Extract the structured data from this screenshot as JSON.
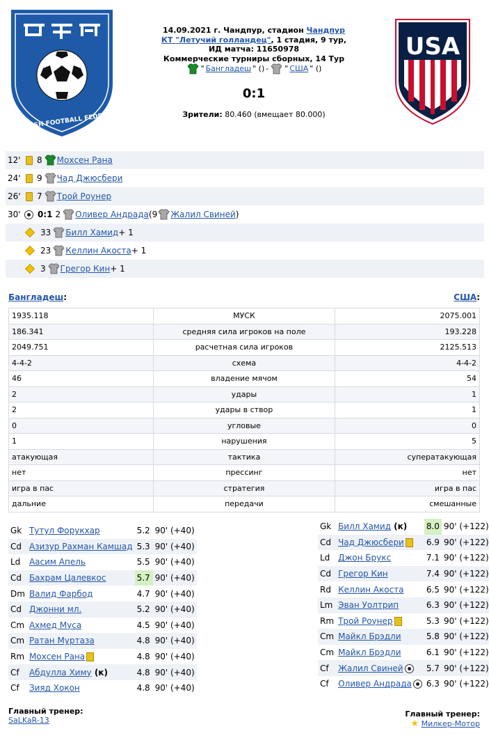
{
  "match": {
    "date_city": "14.09.2021 г. Чандпур, стадион ",
    "stadium_link": "Чандпур",
    "tournament_link": "КТ \"Летучий голландец\"",
    "stage": ", 1 стадия, 9 тур,",
    "match_id": "ИД матча: 11650978",
    "competition": "Коммерческие турниры сборных, 14 Тур",
    "home_team": "Бангладеш",
    "away_team": "США",
    "home_extra": "\" ()",
    "away_extra": "\" ()",
    "separator": " - ",
    "quote_open": "\"",
    "score": "0:1",
    "attendance_label": "Зрители:",
    "attendance_value": " 80.460 (вмещает 80.000)"
  },
  "logos": {
    "home_text": "BANGLADESH FOOTBALL FEDERATION",
    "away_text": "USA"
  },
  "colors": {
    "link": "#2255aa",
    "home_shirt": "#1a8a2a",
    "away_shirt": "#9a9a9a",
    "yellow_card": "#e8c21c",
    "rating_highlight": "#d5f0c2"
  },
  "events": [
    {
      "minute": "12'",
      "icon": "yellow-card-icon",
      "num": "8",
      "shirt": "home",
      "player": "Мохсен Рана"
    },
    {
      "minute": "24'",
      "icon": "yellow-card-icon",
      "num": "9",
      "shirt": "away",
      "player": "Чад Джюсбери"
    },
    {
      "minute": "26'",
      "icon": "yellow-card-icon",
      "num": "7",
      "shirt": "away",
      "player": "Трой Роунер"
    },
    {
      "minute": "30'",
      "icon": "ball-icon",
      "score": "0:1",
      "num": "2",
      "shirt": "away",
      "player": "Оливер Андрада",
      "assist_open": " (9 ",
      "assist": "Жалил Свиней",
      "assist_close": ")"
    }
  ],
  "subs": [
    {
      "icon": "substitution-icon",
      "num": "33",
      "player": "Билл Хамид",
      "suffix": " + 1"
    },
    {
      "icon": "substitution-icon",
      "num": "23",
      "player": "Келлин Акоста",
      "suffix": " + 1"
    },
    {
      "icon": "substitution-icon",
      "num": "3",
      "player": "Грегор Кин",
      "suffix": " + 1"
    }
  ],
  "teams": {
    "home": "Бангладеш",
    "away": "США",
    "colon": ":"
  },
  "stats": [
    {
      "home": "1935.118",
      "label": "МУСК",
      "away": "2075.001"
    },
    {
      "home": "186.341",
      "label": "средняя сила игроков на поле",
      "away": "193.228"
    },
    {
      "home": "2049.751",
      "label": "расчетная сила игроков",
      "away": "2125.513"
    },
    {
      "home": "4-4-2",
      "label": "схема",
      "away": "4-4-2"
    },
    {
      "home": "46",
      "label": "владение мячом",
      "away": "54"
    },
    {
      "home": "2",
      "label": "удары",
      "away": "1"
    },
    {
      "home": "2",
      "label": "удары в створ",
      "away": "1"
    },
    {
      "home": "0",
      "label": "угловые",
      "away": "0"
    },
    {
      "home": "1",
      "label": "нарушения",
      "away": "5"
    },
    {
      "home": "атакующая",
      "label": "тактика",
      "away": "суператакующая"
    },
    {
      "home": "нет",
      "label": "прессинг",
      "away": "нет"
    },
    {
      "home": "игра в пас",
      "label": "стратегия",
      "away": "игра в пас"
    },
    {
      "home": "дальние",
      "label": "передачи",
      "away": "смешанные"
    }
  ],
  "home_lineup": [
    {
      "pos": "Gk",
      "name": "Тутул Форукхар",
      "rating": "5.2",
      "time": "90' (+40)"
    },
    {
      "pos": "Cd",
      "name": "Азизур Рахман Камшад",
      "rating": "5.3",
      "time": "90' (+40)"
    },
    {
      "pos": "Ld",
      "name": "Аасим Апель",
      "rating": "5.5",
      "time": "90' (+40)"
    },
    {
      "pos": "Cd",
      "name": "Бахрам Цалевкос",
      "rating": "5.7",
      "time": "90' (+40)",
      "best": true
    },
    {
      "pos": "Dm",
      "name": "Валид Фарбод",
      "rating": "4.7",
      "time": "90' (+40)"
    },
    {
      "pos": "Cd",
      "name": "Джонни мл.",
      "rating": "5.2",
      "time": "90' (+40)"
    },
    {
      "pos": "Cm",
      "name": "Ахмед Муса",
      "rating": "4.5",
      "time": "90' (+40)"
    },
    {
      "pos": "Cm",
      "name": "Ратан Муртаза",
      "rating": "4.8",
      "time": "90' (+40)"
    },
    {
      "pos": "Rm",
      "name": "Мохсен Рана",
      "rating": "4.8",
      "time": "90' (+40)",
      "card": true
    },
    {
      "pos": "Cf",
      "name": "Абдулла Химу",
      "rating": "4.8",
      "time": "90' (+40)",
      "captain": " (к)"
    },
    {
      "pos": "Cf",
      "name": "Зияд Хокон",
      "rating": "4.8",
      "time": "90' (+40)"
    }
  ],
  "away_lineup": [
    {
      "pos": "Gk",
      "name": "Билл Хамид",
      "rating": "8.0",
      "time": "90' (+122)",
      "best": true,
      "captain": " (к)"
    },
    {
      "pos": "Cd",
      "name": "Чад Джюсбери",
      "rating": "6.9",
      "time": "90' (+122)",
      "card": true
    },
    {
      "pos": "Ld",
      "name": "Джон Брукс",
      "rating": "7.1",
      "time": "90' (+122)"
    },
    {
      "pos": "Cd",
      "name": "Грегор Кин",
      "rating": "7.4",
      "time": "90' (+122)"
    },
    {
      "pos": "Rd",
      "name": "Келлин Акоста",
      "rating": "6.5",
      "time": "90' (+122)"
    },
    {
      "pos": "Lm",
      "name": "Эван Уолтрип",
      "rating": "6.3",
      "time": "90' (+122)"
    },
    {
      "pos": "Rm",
      "name": "Трой Роунер",
      "rating": "5.3",
      "time": "90' (+122)",
      "card": true
    },
    {
      "pos": "Cm",
      "name": "Майкл Брэдли",
      "rating": "5.8",
      "time": "90' (+122)"
    },
    {
      "pos": "Cm",
      "name": "Майкл Брэдли",
      "rating": "6.1",
      "time": "90' (+122)"
    },
    {
      "pos": "Cf",
      "name": "Жалил Свиней",
      "rating": "5.7",
      "time": "90' (+122)",
      "goal": true
    },
    {
      "pos": "Cf",
      "name": "Оливер Андрада",
      "rating": "6.3",
      "time": "90' (+122)",
      "goal": true
    }
  ],
  "coaches": {
    "label": "Главный тренер:",
    "home": "SaLKaR-13",
    "away": "Милкер-Мотор"
  }
}
